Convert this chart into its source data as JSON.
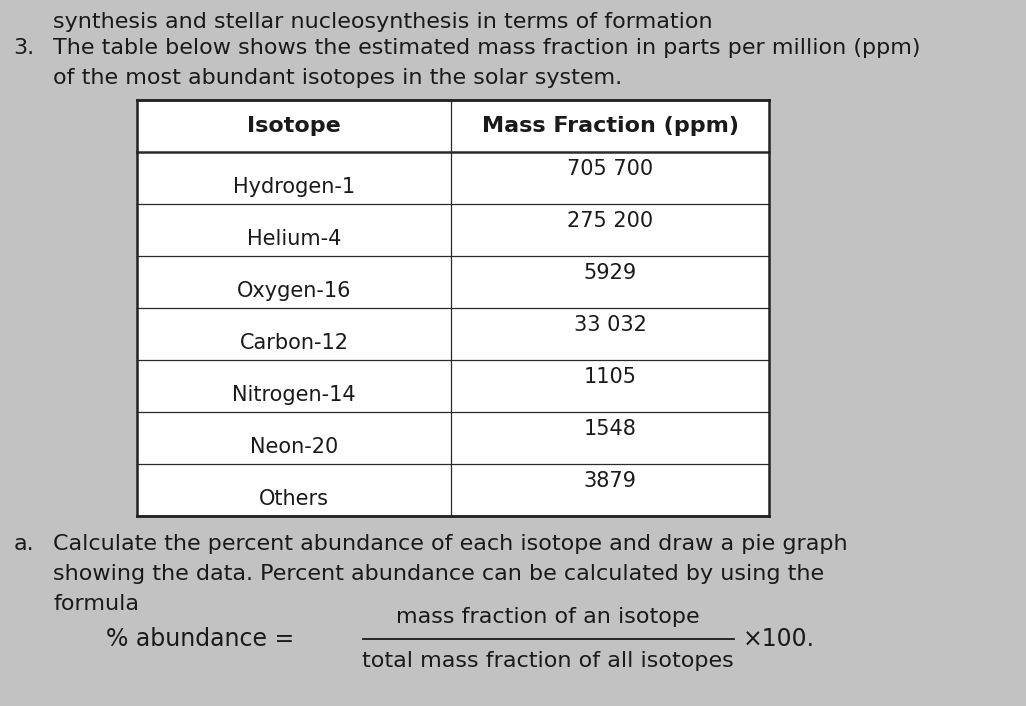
{
  "header_line1": "synthesis and stellar nucleosynthesis in terms of formation",
  "item_number": "3.",
  "text_line1": "The table below shows the estimated mass fraction in parts per million (ppm)",
  "text_line2": "of the most abundant isotopes in the solar system.",
  "table_headers": [
    "Isotope",
    "Mass Fraction (ppm)"
  ],
  "table_rows": [
    [
      "Hydrogen-1",
      "705 700"
    ],
    [
      "Helium-4",
      "275 200"
    ],
    [
      "Oxygen-16",
      "5929"
    ],
    [
      "Carbon-12",
      "33 032"
    ],
    [
      "Nitrogen-14",
      "1105"
    ],
    [
      "Neon-20",
      "1548"
    ],
    [
      "Others",
      "3879"
    ]
  ],
  "label_a": "a.",
  "text_a1": "Calculate the percent abundance of each isotope and draw a pie graph",
  "text_a2": "showing the data. Percent abundance can be calculated by using the",
  "text_a3": "formula",
  "formula_label": "% abundance =",
  "formula_numerator": "mass fraction of an isotope",
  "formula_denominator": "total mass fraction of all isotopes",
  "formula_multiplier": "×100.",
  "bg_color": "#c2c2c2",
  "table_bg": "#ffffff",
  "text_color": "#1a1a1a",
  "font_size_body": 16,
  "font_size_table": 15,
  "font_size_header": 16
}
